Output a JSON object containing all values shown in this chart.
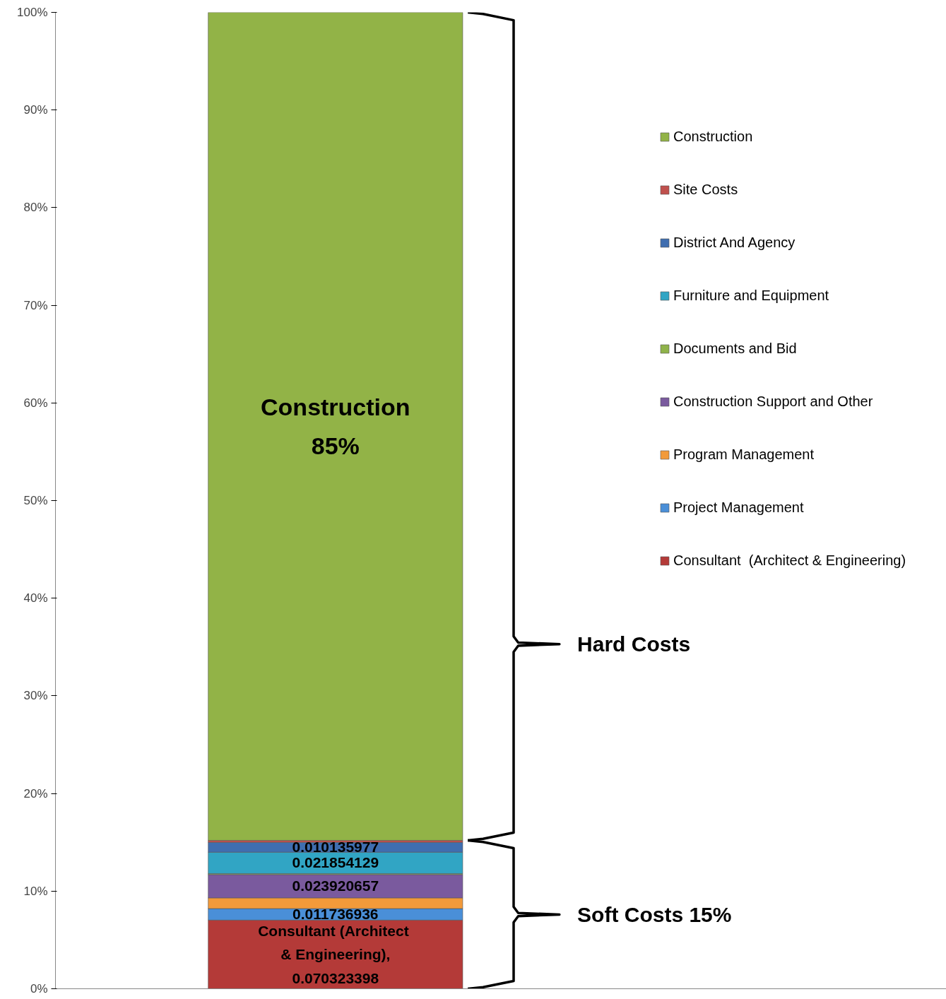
{
  "chart_data": {
    "type": "bar",
    "stacked": true,
    "categories": [
      null
    ],
    "series": [
      {
        "name": "Consultant  (Architect & Engineering)",
        "color": "#b43a38",
        "values": [
          0.070323398
        ],
        "value_labels": [
          "Consultant  (Architect\n& Engineering),\n0.070323398"
        ]
      },
      {
        "name": "Project Management",
        "color": "#4a8fd8",
        "values": [
          0.011736936
        ],
        "value_labels": [
          "0.011736936"
        ]
      },
      {
        "name": "Program Management",
        "color": "#f29a3a",
        "values": [
          0.011
        ],
        "value_labels": [
          null
        ]
      },
      {
        "name": "Construction Support and Other",
        "color": "#7a5a9e",
        "values": [
          0.023920657
        ],
        "value_labels": [
          "0.023920657"
        ]
      },
      {
        "name": "Documents and Bid",
        "color": "#8fb34a",
        "values": [
          0.001
        ],
        "value_labels": [
          null
        ]
      },
      {
        "name": "Furniture and Equipment",
        "color": "#31a5c4",
        "values": [
          0.021854129
        ],
        "value_labels": [
          "0.021854129"
        ]
      },
      {
        "name": "District And Agency",
        "color": "#3f6eb0",
        "values": [
          0.010135977
        ],
        "value_labels": [
          "0.010135977"
        ]
      },
      {
        "name": "Site Costs",
        "color": "#c0504d",
        "values": [
          0.002
        ],
        "value_labels": [
          null
        ]
      },
      {
        "name": "Construction",
        "color": "#92b347",
        "values": [
          0.848
        ],
        "value_labels": [
          "Construction\n85%"
        ]
      }
    ],
    "ylim": [
      0,
      1
    ],
    "yticks": [
      {
        "value": 0,
        "label": "0%"
      },
      {
        "value": 0.1,
        "label": "10%"
      },
      {
        "value": 0.2,
        "label": "20%"
      },
      {
        "value": 0.3,
        "label": "30%"
      },
      {
        "value": 0.4,
        "label": "40%"
      },
      {
        "value": 0.5,
        "label": "50%"
      },
      {
        "value": 0.6,
        "label": "60%"
      },
      {
        "value": 0.7,
        "label": "70%"
      },
      {
        "value": 0.8,
        "label": "80%"
      },
      {
        "value": 0.9,
        "label": "90%"
      },
      {
        "value": 1,
        "label": "100%"
      }
    ],
    "annotations": [
      "Hard Costs",
      "Soft Costs 15%"
    ],
    "legend": "right",
    "grid": false
  }
}
